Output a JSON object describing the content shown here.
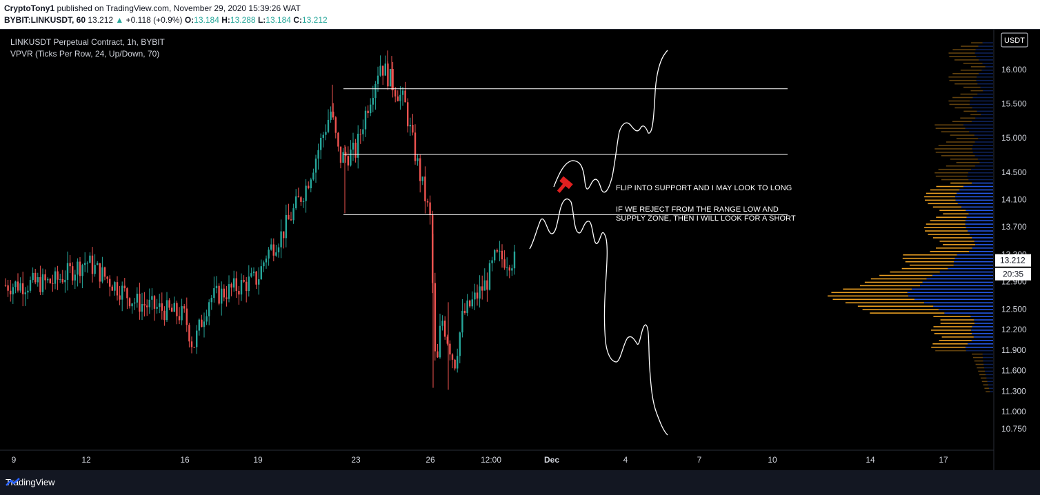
{
  "header": {
    "line1_user": "CryptoTony1",
    "line1_rest": " published on TradingView.com, November 29, 2020 15:39:26 WAT",
    "symbol": "BYBIT:LINKUSDT, 60",
    "last": "13.212",
    "change_arrow": "▲",
    "change": "+0.118 (+0.9%)",
    "o_label": "O:",
    "o": "13.184",
    "h_label": "H:",
    "h": "13.288",
    "l_label": "L:",
    "l": "13.184",
    "c_label": "C:",
    "c": "13.212"
  },
  "legend": {
    "title": "LINKUSDT Perpetual Contract, 1h, BYBIT",
    "indicator": "VPVR (Ticks Per Row, 24, Up/Down, 70)"
  },
  "annotations": {
    "long": "FLIP INTO SUPPORT AND I MAY LOOK TO LONG",
    "short_line1": "IF WE REJECT FROM THE RANGE LOW AND",
    "short_line2": "SUPPLY ZONE, THEN I WILL LOOK FOR A SHORT"
  },
  "price_axis": {
    "currency": "USDT",
    "current_price": "13.212",
    "countdown": "20:35"
  },
  "footer": {
    "brand": "TradingView"
  },
  "colors": {
    "up": "#26a69a",
    "down": "#ef5350",
    "vp_up": "#2962ff",
    "vp_down": "#f5a623",
    "accent": "#e02020"
  },
  "icons": {
    "marker": "hammer-icon",
    "logo": "tradingview-logo-icon"
  },
  "chart_data": {
    "type": "candlestick",
    "title": "LINKUSDT Perpetual Contract, 1h, BYBIT",
    "x_ticks": [
      "9",
      "12",
      "16",
      "19",
      "23",
      "26",
      "12:00",
      "Dec",
      "4",
      "7",
      "10",
      "14",
      "17"
    ],
    "y_ticks": [
      16.0,
      15.5,
      15.0,
      14.5,
      14.1,
      13.7,
      13.3,
      12.9,
      12.5,
      12.2,
      11.9,
      11.6,
      11.3,
      11.0,
      10.75
    ],
    "y_tick_labels": [
      "16.000",
      "15.500",
      "15.000",
      "14.500",
      "14.100",
      "13.700",
      "13.300",
      "12.900",
      "12.500",
      "12.200",
      "11.900",
      "11.600",
      "11.300",
      "11.000",
      "10.750"
    ],
    "ylim": [
      10.6,
      16.5
    ],
    "last_price": 13.212,
    "horizontal_levels": [
      15.72,
      14.76,
      13.88
    ],
    "path_anchors": [
      {
        "date": "Nov 9",
        "close": 12.85
      },
      {
        "date": "Nov 11",
        "close": 12.9
      },
      {
        "date": "Nov 12",
        "close": 13.2
      },
      {
        "date": "Nov 14",
        "close": 12.6
      },
      {
        "date": "Nov 16",
        "close": 12.4
      },
      {
        "date": "Nov 16",
        "close": 11.95
      },
      {
        "date": "Nov 17",
        "close": 12.65
      },
      {
        "date": "Nov 19",
        "close": 12.95
      },
      {
        "date": "Nov 19",
        "close": 13.3
      },
      {
        "date": "Nov 20",
        "close": 13.6
      },
      {
        "date": "Nov 21",
        "close": 14.3
      },
      {
        "date": "Nov 22",
        "close": 15.4
      },
      {
        "date": "Nov 22",
        "close": 14.7
      },
      {
        "date": "Nov 23",
        "close": 14.8
      },
      {
        "date": "Nov 23",
        "close": 15.3
      },
      {
        "date": "Nov 24",
        "close": 16.1
      },
      {
        "date": "Nov 25",
        "close": 15.5
      },
      {
        "date": "Nov 25",
        "close": 14.9
      },
      {
        "date": "Nov 26",
        "close": 13.8
      },
      {
        "date": "Nov 26",
        "close": 11.45
      },
      {
        "date": "Nov 26",
        "close": 12.4
      },
      {
        "date": "Nov 27",
        "close": 11.7
      },
      {
        "date": "Nov 27",
        "close": 12.4
      },
      {
        "date": "Nov 28",
        "close": 12.9
      },
      {
        "date": "Nov 28",
        "close": 13.25
      },
      {
        "date": "Nov 29",
        "close": 13.21
      }
    ]
  }
}
